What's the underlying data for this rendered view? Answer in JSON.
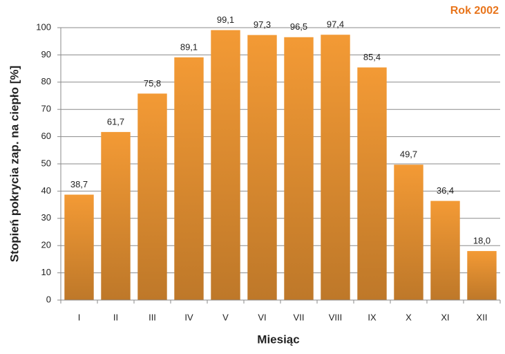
{
  "chart_data": {
    "type": "bar",
    "title": "Rok 2002",
    "x_label": "Miesiąc",
    "y_label": "Stopień pokrycia zap. na ciepło [%]",
    "categories": [
      "I",
      "II",
      "III",
      "IV",
      "V",
      "VI",
      "VII",
      "VIII",
      "IX",
      "X",
      "XI",
      "XII"
    ],
    "values": [
      38.7,
      61.7,
      75.8,
      89.1,
      99.1,
      97.3,
      96.5,
      97.4,
      85.4,
      49.7,
      36.4,
      18.0
    ],
    "value_labels": [
      "38,7",
      "61,7",
      "75,8",
      "89,1",
      "99,1",
      "97,3",
      "96,5",
      "97,4",
      "85,4",
      "49,7",
      "36,4",
      "18,0"
    ],
    "color": "#f39a35",
    "title_color": "#e8741a",
    "ylim": [
      0,
      100
    ],
    "yticks": [
      0,
      10,
      20,
      30,
      40,
      50,
      60,
      70,
      80,
      90,
      100
    ],
    "grid": true
  }
}
